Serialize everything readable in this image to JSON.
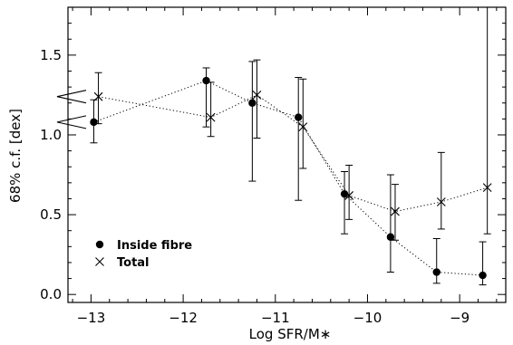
{
  "chart_data": {
    "type": "scatter",
    "title": "",
    "xlabel": "Log SFR/M∗",
    "ylabel": "68% c.f. [dex]",
    "xlim": [
      -13.25,
      -8.5
    ],
    "ylim": [
      -0.05,
      1.8
    ],
    "x_ticks": [
      -13,
      -12,
      -11,
      -10,
      -9
    ],
    "x_tick_labels": [
      "−13",
      "−12",
      "−11",
      "−10",
      "−9"
    ],
    "y_ticks": [
      0.0,
      0.5,
      1.0,
      1.5
    ],
    "y_tick_labels": [
      "0.0",
      "0.5",
      "1.0",
      "1.5"
    ],
    "grid": false,
    "legend": {
      "position": "bottom-left"
    },
    "series": [
      {
        "name": "Inside fibre",
        "marker": "filled-circle",
        "line": "dotted",
        "x": [
          -12.97,
          -11.75,
          -11.25,
          -10.75,
          -10.25,
          -9.75,
          -9.25,
          -8.75
        ],
        "y": [
          1.08,
          1.34,
          1.2,
          1.11,
          0.63,
          0.36,
          0.14,
          0.12
        ],
        "y_err_low": [
          0.95,
          1.05,
          0.71,
          0.59,
          0.38,
          0.14,
          0.07,
          0.06
        ],
        "y_err_high": [
          1.22,
          1.42,
          1.46,
          1.36,
          0.77,
          0.75,
          0.35,
          0.33
        ]
      },
      {
        "name": "Total",
        "marker": "cross",
        "line": "dotted",
        "x": [
          -12.92,
          -11.7,
          -11.2,
          -10.7,
          -10.2,
          -9.7,
          -9.2,
          -8.7
        ],
        "y": [
          1.24,
          1.11,
          1.25,
          1.05,
          0.62,
          0.52,
          0.58,
          0.67
        ],
        "y_err_low": [
          1.07,
          0.99,
          0.98,
          0.79,
          0.47,
          0.34,
          0.41,
          0.38
        ],
        "y_err_high": [
          1.39,
          1.33,
          1.47,
          1.35,
          0.81,
          0.69,
          0.89,
          1.85
        ]
      }
    ],
    "annotations": [
      {
        "type": "left-arrow",
        "y": 1.24
      },
      {
        "type": "left-arrow",
        "y": 1.08
      }
    ]
  }
}
